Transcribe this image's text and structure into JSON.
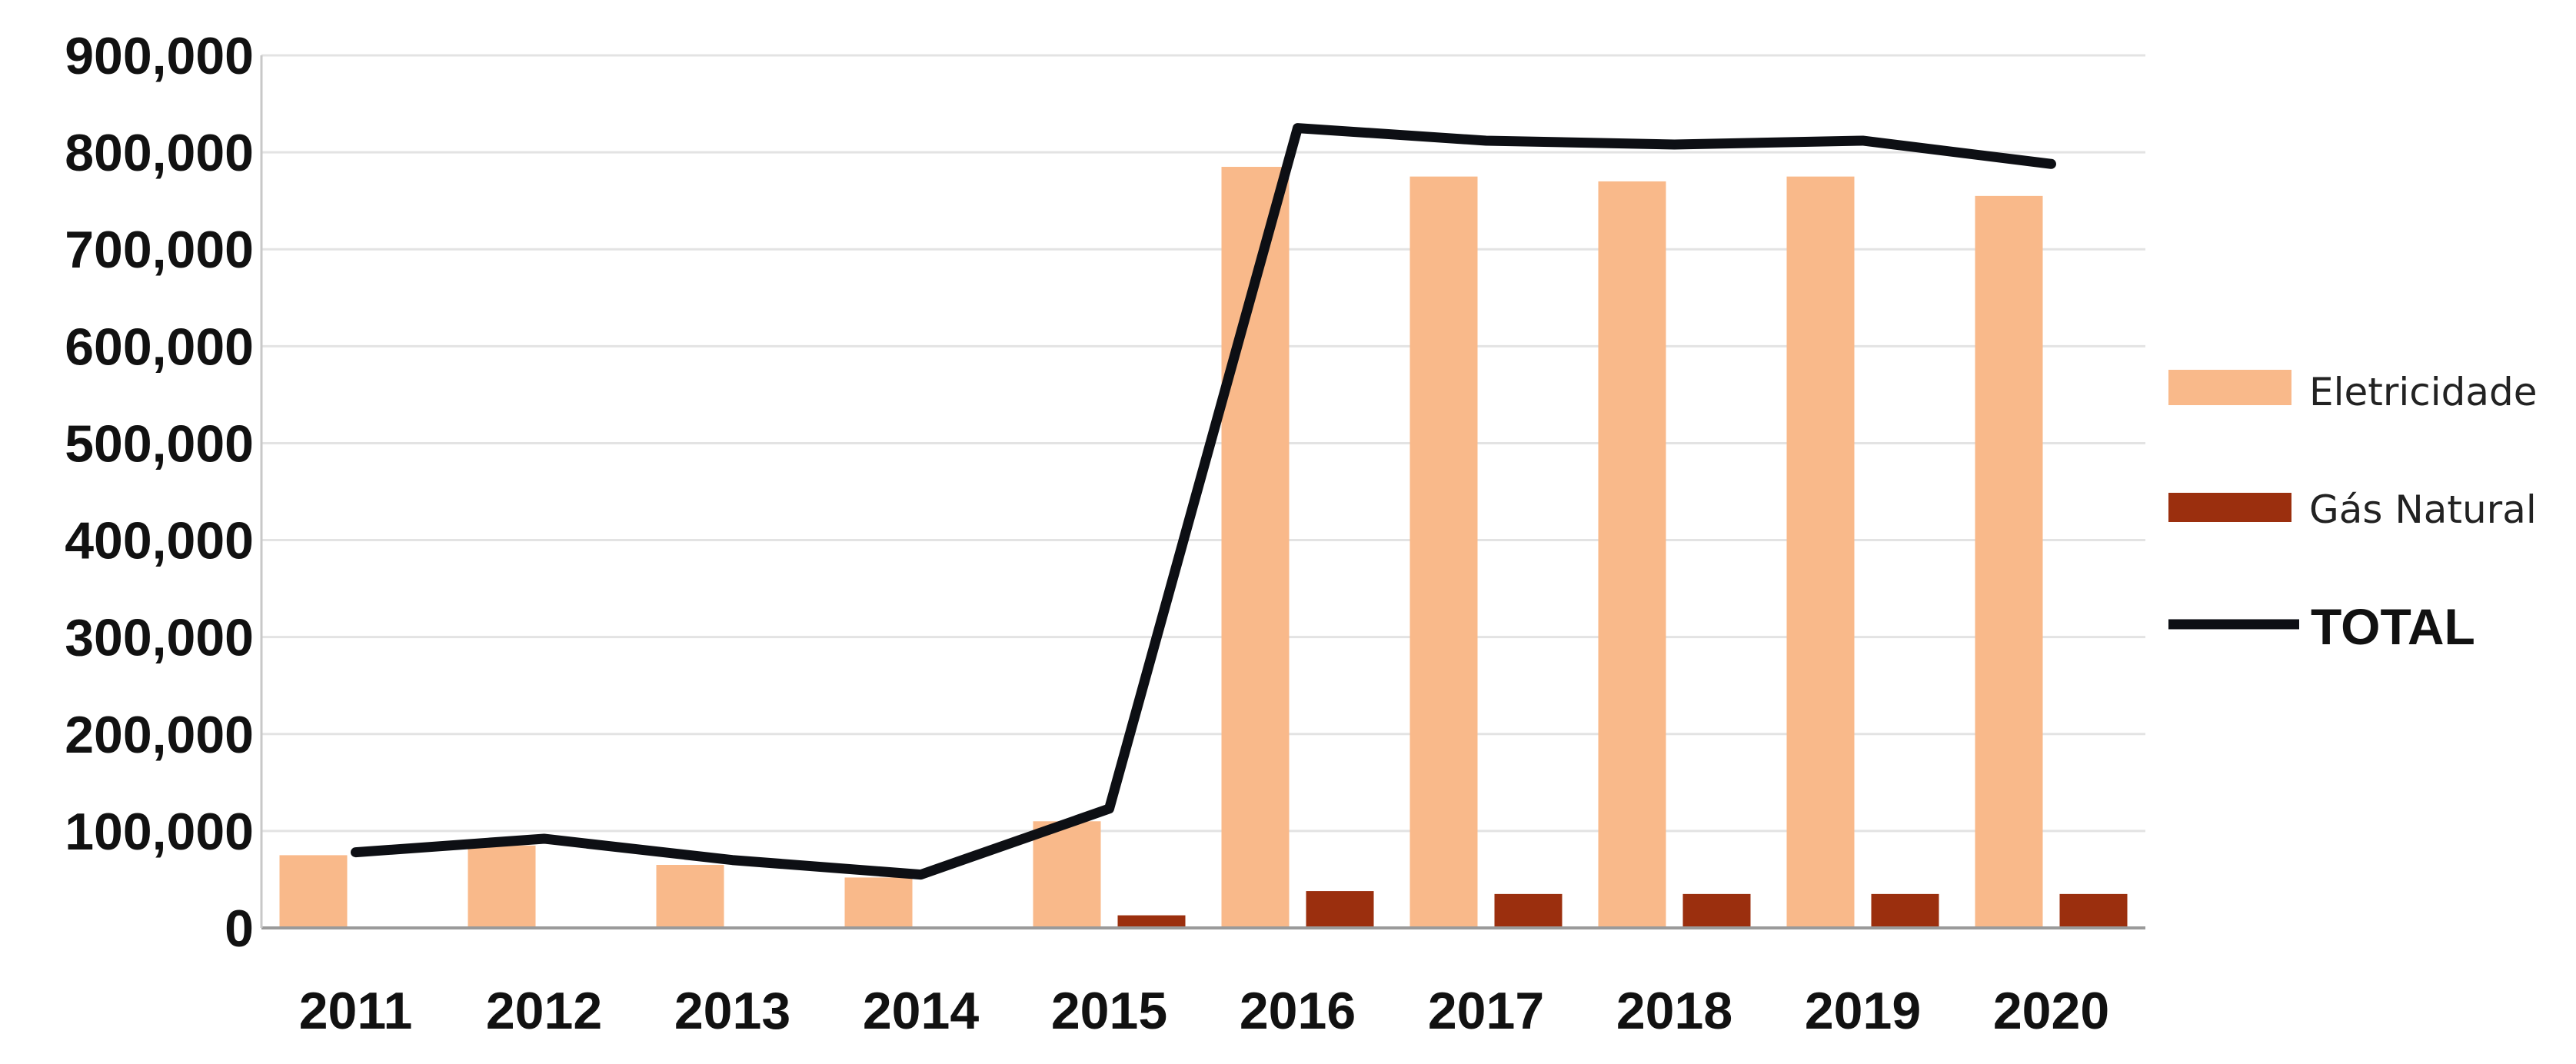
{
  "chart_data": {
    "type": "bar",
    "categories": [
      "2011",
      "2012",
      "2013",
      "2014",
      "2015",
      "2016",
      "2017",
      "2018",
      "2019",
      "2020"
    ],
    "series": [
      {
        "name": "Eletricidade",
        "kind": "bar",
        "color": "#f9b98a",
        "values": [
          75000,
          85000,
          65000,
          52000,
          110000,
          785000,
          775000,
          770000,
          775000,
          755000
        ]
      },
      {
        "name": "Gás Natural",
        "kind": "bar",
        "color": "#9b2f0e",
        "values": [
          0,
          0,
          0,
          0,
          13000,
          38000,
          35000,
          35000,
          35000,
          35000
        ]
      },
      {
        "name": "TOTAL",
        "kind": "line",
        "color": "#0d0f14",
        "values": [
          78000,
          92000,
          70000,
          55000,
          123000,
          825000,
          812000,
          808000,
          812000,
          788000
        ]
      }
    ],
    "yticks": [
      "0",
      "100,000",
      "200,000",
      "300,000",
      "400,000",
      "500,000",
      "600,000",
      "700,000",
      "800,000",
      "900,000"
    ],
    "ylim": [
      0,
      900000
    ],
    "grid": true,
    "legend_position": "right"
  }
}
